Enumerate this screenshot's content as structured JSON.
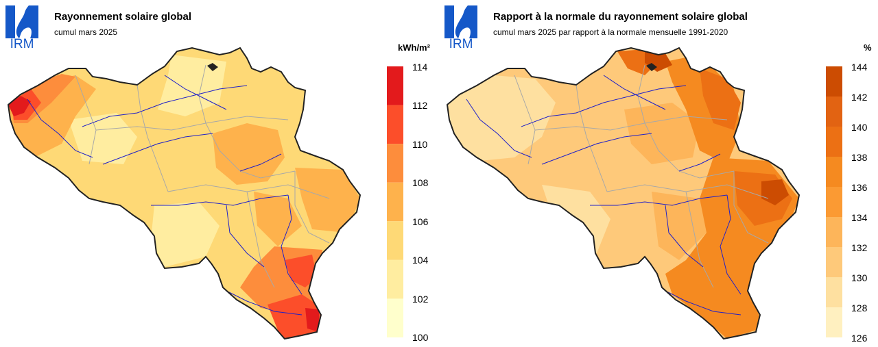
{
  "logo_text": "IRM",
  "panels": [
    {
      "title": "Rayonnement solaire global",
      "subtitle": "cumul mars 2025",
      "unit": "kWh/m²",
      "legend_values": [
        "114",
        "112",
        "110",
        "108",
        "106",
        "104",
        "102",
        "100"
      ],
      "legend_colors": [
        "#e31a1c",
        "#fc4e2a",
        "#fd8d3c",
        "#feb24c",
        "#fed976",
        "#ffeda0",
        "#ffffcc"
      ],
      "zones": [
        {
          "fill": "#fed976"
        },
        {
          "fill": "#ffeda0"
        },
        {
          "fill": "#feb24c"
        },
        {
          "fill": "#fd8d3c"
        },
        {
          "fill": "#fc4e2a"
        },
        {
          "fill": "#e31a1c"
        }
      ]
    },
    {
      "title": "Rapport à la normale du rayonnement solaire global",
      "subtitle": "cumul mars 2025 par rapport à la normale mensuelle 1991-2020",
      "unit": "%",
      "legend_values": [
        "144",
        "142",
        "140",
        "138",
        "136",
        "134",
        "132",
        "130",
        "128",
        "126"
      ],
      "legend_colors": [
        "#cc4c02",
        "#e26312",
        "#ec7014",
        "#f58a20",
        "#fb9a33",
        "#fdb55a",
        "#fec97a",
        "#fee0a0",
        "#fff0c0"
      ],
      "zones": [
        {
          "fill": "#fec97a"
        },
        {
          "fill": "#fee0a0"
        },
        {
          "fill": "#fdb55a"
        },
        {
          "fill": "#f58a20"
        },
        {
          "fill": "#ec7014"
        },
        {
          "fill": "#cc4c02"
        }
      ]
    }
  ]
}
